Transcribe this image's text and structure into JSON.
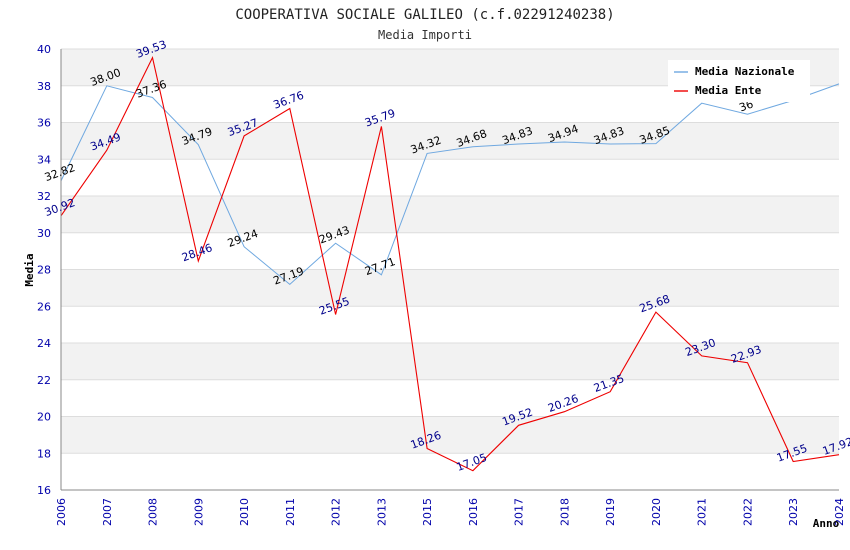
{
  "chart_data": {
    "type": "line",
    "title": "COOPERATIVA SOCIALE GALILEO (c.f.02291240238)",
    "subtitle": "Media Importi",
    "xlabel": "Anno",
    "ylabel": "Media",
    "categories": [
      "2006",
      "2007",
      "2008",
      "2009",
      "2010",
      "2011",
      "2012",
      "2013",
      "2015",
      "2016",
      "2017",
      "2018",
      "2019",
      "2020",
      "2021",
      "2022",
      "2023",
      "2024"
    ],
    "ylim": [
      16,
      40
    ],
    "yticks": [
      "16",
      "18",
      "20",
      "22",
      "24",
      "26",
      "28",
      "30",
      "32",
      "34",
      "36",
      "38",
      "40"
    ],
    "grid": true,
    "legend_position": "top-right",
    "series": [
      {
        "name": "Media Nazionale",
        "color": "#6fa8e0",
        "label_color": "#000000",
        "values": [
          32.82,
          38.0,
          37.36,
          34.79,
          29.24,
          27.19,
          29.43,
          27.71,
          34.32,
          34.68,
          34.83,
          34.94,
          34.83,
          34.85,
          37.05,
          36.45,
          37.2,
          38.1
        ],
        "labels": [
          "32.82",
          "38.00",
          "37.36",
          "34.79",
          "29.24",
          "27.19",
          "29.43",
          "27.71",
          "34.32",
          "34.68",
          "34.83",
          "34.94",
          "34.83",
          "34.85",
          "",
          "36",
          "",
          ""
        ]
      },
      {
        "name": "Media Ente",
        "color": "#ee0000",
        "label_color": "#00008b",
        "values": [
          30.92,
          34.49,
          39.53,
          28.46,
          35.27,
          36.76,
          25.55,
          35.79,
          18.26,
          17.05,
          19.52,
          20.26,
          21.35,
          25.68,
          23.3,
          22.93,
          17.55,
          17.92
        ],
        "labels": [
          "30.92",
          "34.49",
          "39.53",
          "28.46",
          "35.27",
          "36.76",
          "25.55",
          "35.79",
          "18.26",
          "17.05",
          "19.52",
          "20.26",
          "21.35",
          "25.68",
          "23.30",
          "22.93",
          "17.55",
          "17.92"
        ]
      }
    ]
  }
}
